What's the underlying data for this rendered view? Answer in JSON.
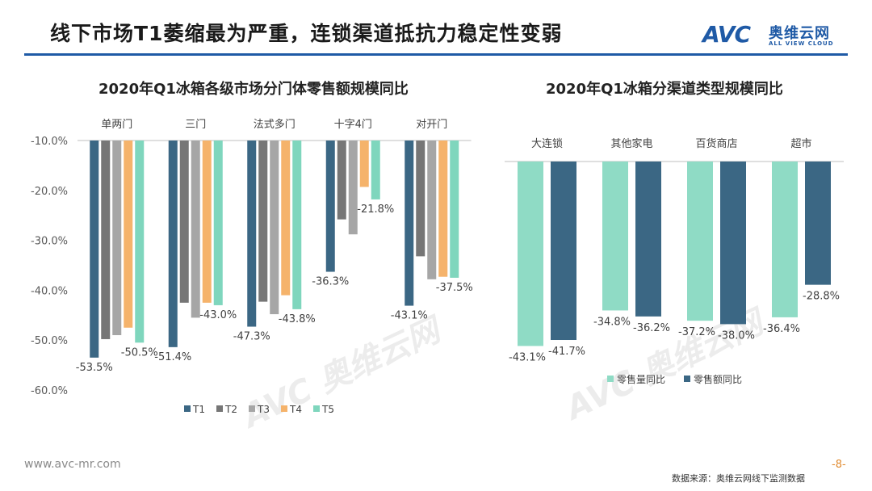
{
  "header": {
    "title": "线下市场T1萎缩最为严重，连锁渠道抵抗力稳定性变弱",
    "logo_mark": "AVC",
    "logo_cn": "奥维云网",
    "logo_en": "ALL VIEW CLOUD",
    "brand_color": "#1f5aa6"
  },
  "footer": {
    "url": "www.avc-mr.com",
    "source": "数据来源：奥维云网线下监测数据",
    "page": "-8-"
  },
  "chart_data": [
    {
      "type": "bar",
      "title": "2020年Q1冰箱各级市场分门体零售额规模同比",
      "categories": [
        "单两门",
        "三门",
        "法式多门",
        "十字4门",
        "对开门"
      ],
      "series": [
        {
          "name": "T1",
          "color": "#3b6784",
          "values": [
            -53.5,
            -51.4,
            -47.3,
            -36.3,
            -43.1
          ]
        },
        {
          "name": "T2",
          "color": "#767676",
          "values": [
            -49.8,
            -42.5,
            -42.3,
            -25.8,
            -33.2
          ]
        },
        {
          "name": "T3",
          "color": "#a6a6a6",
          "values": [
            -49.0,
            -45.5,
            -44.8,
            -28.8,
            -37.8
          ]
        },
        {
          "name": "T4",
          "color": "#f5b36b",
          "values": [
            -47.5,
            -42.5,
            -41.0,
            -19.3,
            -37.3
          ]
        },
        {
          "name": "T5",
          "color": "#7fd6bd",
          "values": [
            -50.5,
            -43.0,
            -43.8,
            -21.8,
            -37.5
          ]
        }
      ],
      "data_labels": [
        {
          "category": "单两门",
          "series": "T1",
          "text": "-53.5%"
        },
        {
          "category": "单两门",
          "series": "T5",
          "text": "-50.5%"
        },
        {
          "category": "三门",
          "series": "T1",
          "text": "-51.4%"
        },
        {
          "category": "三门",
          "series": "T5",
          "text": "-43.0%"
        },
        {
          "category": "法式多门",
          "series": "T1",
          "text": "-47.3%"
        },
        {
          "category": "法式多门",
          "series": "T5",
          "text": "-43.8%"
        },
        {
          "category": "十字4门",
          "series": "T1",
          "text": "-36.3%"
        },
        {
          "category": "十字4门",
          "series": "T5",
          "text": "-21.8%"
        },
        {
          "category": "对开门",
          "series": "T1",
          "text": "-43.1%"
        },
        {
          "category": "对开门",
          "series": "T5",
          "text": "-37.5%"
        }
      ],
      "yticks": [
        "-10.0%",
        "-20.0%",
        "-30.0%",
        "-40.0%",
        "-50.0%",
        "-60.0%"
      ],
      "ylim": [
        -60,
        -10
      ],
      "legend": "bottom"
    },
    {
      "type": "bar",
      "title": "2020年Q1冰箱分渠道类型规模同比",
      "categories": [
        "大连锁",
        "其他家电",
        "百货商店",
        "超市"
      ],
      "series": [
        {
          "name": "零售量同比",
          "color": "#8fdbc5",
          "values": [
            -43.1,
            -34.8,
            -37.2,
            -36.4
          ]
        },
        {
          "name": "零售额同比",
          "color": "#3b6784",
          "values": [
            -41.7,
            -36.2,
            -38.0,
            -28.8
          ]
        }
      ],
      "ylim": [
        -45,
        0
      ],
      "legend": "bottom"
    }
  ]
}
